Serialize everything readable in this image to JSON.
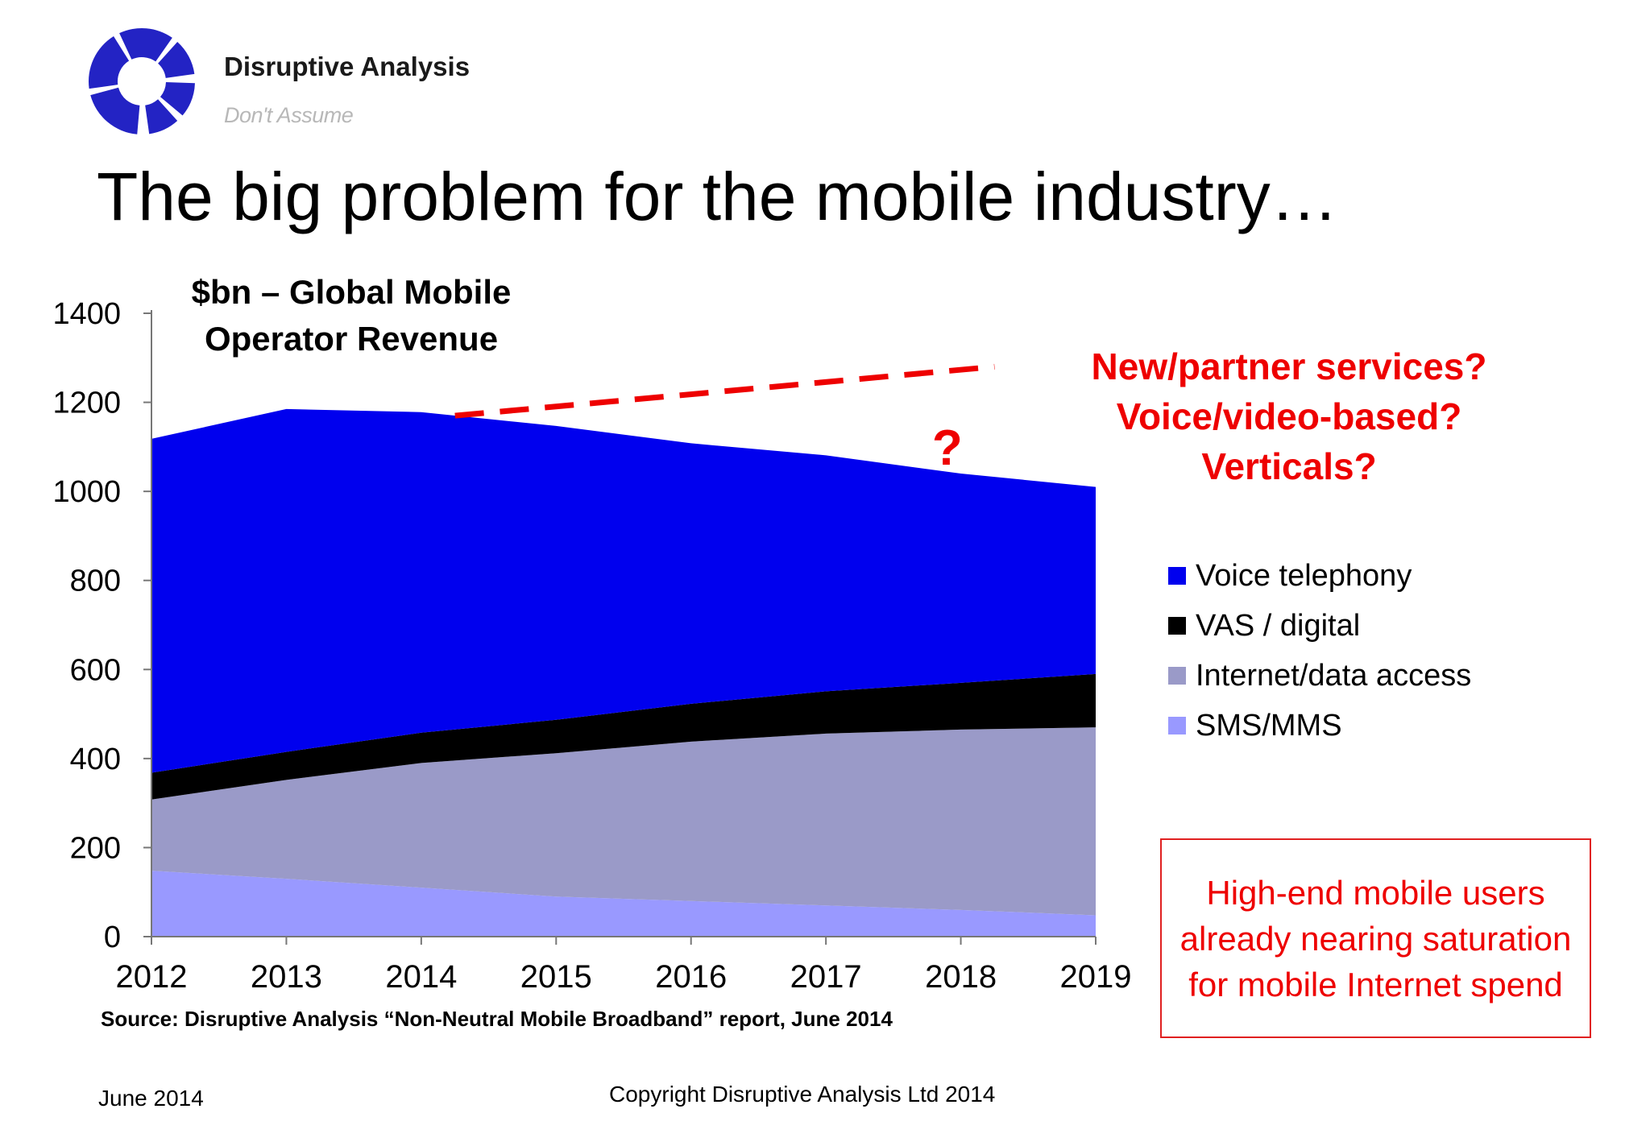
{
  "brand": {
    "name": "Disruptive Analysis",
    "tagline": "Don't Assume",
    "logo_icon": "segmented-ring-logo",
    "logo_color": "#2323c4"
  },
  "slide_title": "The big problem for the mobile industry…",
  "chart_data": {
    "type": "area",
    "stacked": true,
    "title_lines": [
      "$bn – Global Mobile",
      "Operator Revenue"
    ],
    "xlabel": "",
    "ylabel": "",
    "categories": [
      "2012",
      "2013",
      "2014",
      "2015",
      "2016",
      "2017",
      "2018",
      "2019"
    ],
    "ylim": [
      0,
      1400
    ],
    "yticks": [
      0,
      200,
      400,
      600,
      800,
      1000,
      1200,
      1400
    ],
    "grid": false,
    "legend_position": "right",
    "series": [
      {
        "name": "SMS/MMS",
        "color": "#9999ff",
        "values": [
          148,
          130,
          110,
          90,
          80,
          70,
          60,
          48
        ]
      },
      {
        "name": "Internet/data access",
        "color": "#9a9ac8",
        "values": [
          160,
          222,
          280,
          322,
          358,
          386,
          405,
          422
        ]
      },
      {
        "name": "VAS / digital",
        "color": "#000000",
        "values": [
          60,
          63,
          68,
          75,
          85,
          95,
          105,
          120
        ]
      },
      {
        "name": "Voice telephony",
        "color": "#0000ee",
        "values": [
          750,
          770,
          720,
          660,
          585,
          530,
          470,
          420
        ]
      }
    ],
    "legend_order": [
      "Voice telephony",
      "VAS / digital",
      "Internet/data access",
      "SMS/MMS"
    ],
    "trend_line": {
      "x": [
        2014.25,
        2018.25
      ],
      "y": [
        1170,
        1280
      ],
      "color": "#ee0000",
      "style": "dashed"
    },
    "question_mark": {
      "text": "?",
      "color": "#ee0000",
      "x": 2017.9,
      "y": 1100
    }
  },
  "callout_lines": [
    "New/partner services?",
    "Voice/video-based?",
    "Verticals?"
  ],
  "note_box": "High-end mobile users already nearing saturation for mobile Internet spend",
  "source": "Source: Disruptive Analysis “Non-Neutral Mobile Broadband” report, June 2014",
  "footer": {
    "date": "June 2014",
    "copyright": "Copyright Disruptive Analysis Ltd 2014"
  },
  "colors": {
    "accent_red": "#ee0000",
    "brand_blue": "#2323c4"
  }
}
